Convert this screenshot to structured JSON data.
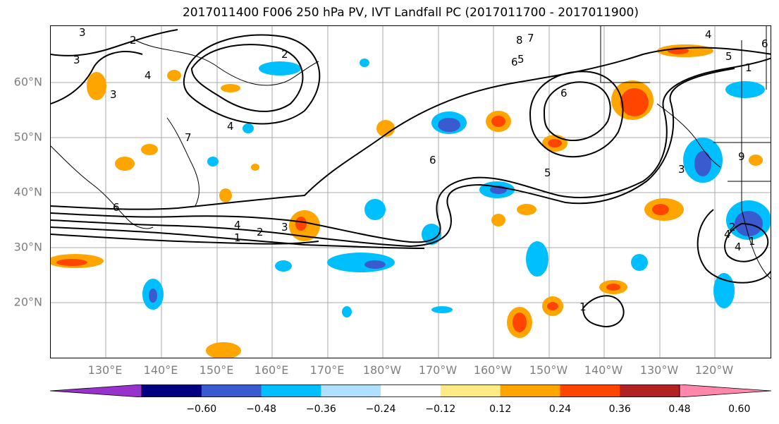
{
  "title": "2017011400 F006 250 hPa PV, IVT Landfall PC (2017011700 - 2017011900)",
  "map": {
    "lat_ticks": [
      "60°N",
      "50°N",
      "40°N",
      "30°N",
      "20°N"
    ],
    "lon_ticks": [
      "130°E",
      "140°E",
      "150°E",
      "160°E",
      "170°E",
      "180°W",
      "170°W",
      "160°W",
      "150°W",
      "140°W",
      "130°W",
      "120°W"
    ],
    "contour_labels": [
      "3",
      "2",
      "3",
      "4",
      "3",
      "2",
      "7",
      "4",
      "6",
      "6",
      "6",
      "5",
      "8",
      "7",
      "6",
      "5",
      "4",
      "1",
      "3",
      "2",
      "1",
      "4",
      "6",
      "5",
      "3",
      "4",
      "1",
      "2",
      "4",
      "1",
      "9"
    ],
    "grid": true
  },
  "colorbar": {
    "colors": [
      "#9932cc",
      "#000080",
      "#3a5bcf",
      "#00bfff",
      "#b0e0ff",
      "#ffffff",
      "#ffea85",
      "#ffa500",
      "#ff4500",
      "#b22222",
      "#ff88aa"
    ],
    "tick_labels": [
      "−0.60",
      "−0.48",
      "−0.36",
      "−0.24",
      "−0.12",
      "0.12",
      "0.24",
      "0.36",
      "0.48",
      "0.60"
    ]
  }
}
